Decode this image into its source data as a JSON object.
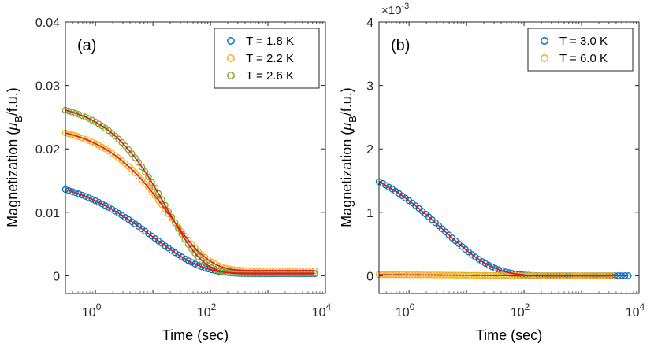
{
  "chart_data": [
    {
      "type": "scatter",
      "panel_label": "(a)",
      "xlabel": "Time (sec)",
      "ylabel": "Magnetization",
      "ylabel_unit": "(μB/f.u.)",
      "xscale": "log",
      "xlim": [
        0.3,
        10000
      ],
      "ylim": [
        -0.0028,
        0.04
      ],
      "xticks": [
        {
          "value": 1,
          "base": "10",
          "exp": "0"
        },
        {
          "value": 100,
          "base": "10",
          "exp": "2"
        },
        {
          "value": 10000,
          "base": "10",
          "exp": "4"
        }
      ],
      "yticks": [
        {
          "value": 0,
          "label": "0"
        },
        {
          "value": 0.01,
          "label": "0.01"
        },
        {
          "value": 0.02,
          "label": "0.02"
        },
        {
          "value": 0.03,
          "label": "0.03"
        },
        {
          "value": 0.04,
          "label": "0.04"
        }
      ],
      "legend_position": "top-right",
      "fit_color": "#e4151b",
      "series": [
        {
          "name": "T = 1.8 K",
          "color": "#0072bd",
          "M0": 0.0161,
          "Minf": 0.0003,
          "tau": 10.0,
          "beta": 0.5,
          "tmax": 6500
        },
        {
          "name": "T = 2.2 K",
          "color": "#edb120",
          "M0": 0.0241,
          "Minf": 0.0008,
          "tau": 20.0,
          "beta": 0.63,
          "tmax": 6500
        },
        {
          "name": "T = 2.6 K",
          "color": "#77ac30",
          "M0": 0.0276,
          "Minf": 0.0004,
          "tau": 18.0,
          "beta": 0.7,
          "tmax": 6500
        }
      ]
    },
    {
      "type": "scatter",
      "panel_label": "(b)",
      "xlabel": "Time (sec)",
      "ylabel": "Magnetization",
      "ylabel_unit": "(μB/f.u.)",
      "xscale": "log",
      "xlim": [
        0.3,
        10000
      ],
      "ylim": [
        -0.00028,
        0.004
      ],
      "exponent_label": {
        "base": "×10",
        "exp": "-3"
      },
      "xticks": [
        {
          "value": 1,
          "base": "10",
          "exp": "0"
        },
        {
          "value": 100,
          "base": "10",
          "exp": "2"
        },
        {
          "value": 10000,
          "base": "10",
          "exp": "4"
        }
      ],
      "yticks": [
        {
          "value": 0,
          "label": "0"
        },
        {
          "value": 0.001,
          "label": "1"
        },
        {
          "value": 0.002,
          "label": "2"
        },
        {
          "value": 0.003,
          "label": "3"
        },
        {
          "value": 0.004,
          "label": "4"
        }
      ],
      "legend_position": "top-right",
      "fit_color": "#e4151b",
      "series": [
        {
          "name": "T = 3.0 K",
          "color": "#0072bd",
          "M0": 0.00195,
          "Minf": 0.0,
          "tau": 4.0,
          "beta": 0.5,
          "tmax": 6500
        },
        {
          "name": "T = 6.0 K",
          "color": "#edb120",
          "M0": 2e-05,
          "Minf": 0.0,
          "tau": 10.0,
          "beta": 0.5,
          "tmax": 3500
        }
      ]
    }
  ]
}
